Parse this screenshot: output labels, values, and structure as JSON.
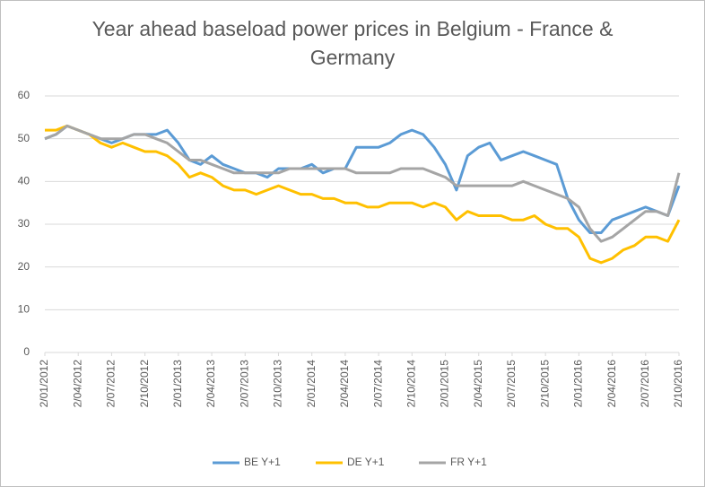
{
  "chart_data": {
    "type": "line",
    "title": "Year ahead baseload power prices in Belgium - France & Germany",
    "x": [
      "2/01/2012",
      "2/02/2012",
      "2/03/2012",
      "2/04/2012",
      "2/05/2012",
      "2/06/2012",
      "2/07/2012",
      "2/08/2012",
      "2/09/2012",
      "2/10/2012",
      "2/11/2012",
      "2/12/2012",
      "2/01/2013",
      "2/02/2013",
      "2/03/2013",
      "2/04/2013",
      "2/05/2013",
      "2/06/2013",
      "2/07/2013",
      "2/08/2013",
      "2/09/2013",
      "2/10/2013",
      "2/11/2013",
      "2/12/2013",
      "2/01/2014",
      "2/02/2014",
      "2/03/2014",
      "2/04/2014",
      "2/05/2014",
      "2/06/2014",
      "2/07/2014",
      "2/08/2014",
      "2/09/2014",
      "2/10/2014",
      "2/11/2014",
      "2/12/2014",
      "2/01/2015",
      "2/02/2015",
      "2/03/2015",
      "2/04/2015",
      "2/05/2015",
      "2/06/2015",
      "2/07/2015",
      "2/08/2015",
      "2/09/2015",
      "2/10/2015",
      "2/11/2015",
      "2/12/2015",
      "2/01/2016",
      "2/02/2016",
      "2/03/2016",
      "2/04/2016",
      "2/05/2016",
      "2/06/2016",
      "2/07/2016",
      "2/08/2016",
      "2/09/2016",
      "2/10/2016"
    ],
    "xticks": [
      "2/01/2012",
      "2/04/2012",
      "2/07/2012",
      "2/10/2012",
      "2/01/2013",
      "2/04/2013",
      "2/07/2013",
      "2/10/2013",
      "2/01/2014",
      "2/04/2014",
      "2/07/2014",
      "2/10/2014",
      "2/01/2015",
      "2/04/2015",
      "2/07/2015",
      "2/10/2015",
      "2/01/2016",
      "2/04/2016",
      "2/07/2016",
      "2/10/2016"
    ],
    "series": [
      {
        "name": "BE Y+1",
        "color": "#5b9bd5",
        "values": [
          50,
          51,
          53,
          52,
          51,
          50,
          49,
          50,
          51,
          51,
          51,
          52,
          49,
          45,
          44,
          46,
          44,
          43,
          42,
          42,
          41,
          43,
          43,
          43,
          44,
          42,
          43,
          43,
          48,
          48,
          48,
          49,
          51,
          52,
          51,
          48,
          44,
          38,
          46,
          48,
          49,
          45,
          46,
          47,
          46,
          45,
          44,
          36,
          31,
          28,
          28,
          31,
          32,
          33,
          34,
          33,
          32,
          39
        ]
      },
      {
        "name": "DE Y+1",
        "color": "#ffc000",
        "values": [
          52,
          52,
          53,
          52,
          51,
          49,
          48,
          49,
          48,
          47,
          47,
          46,
          44,
          41,
          42,
          41,
          39,
          38,
          38,
          37,
          38,
          39,
          38,
          37,
          37,
          36,
          36,
          35,
          35,
          34,
          34,
          35,
          35,
          35,
          34,
          35,
          34,
          31,
          33,
          32,
          32,
          32,
          31,
          31,
          32,
          30,
          29,
          29,
          27,
          22,
          21,
          22,
          24,
          25,
          27,
          27,
          26,
          31
        ]
      },
      {
        "name": "FR Y+1",
        "color": "#a5a5a5",
        "values": [
          50,
          51,
          53,
          52,
          51,
          50,
          50,
          50,
          51,
          51,
          50,
          49,
          47,
          45,
          45,
          44,
          43,
          42,
          42,
          42,
          42,
          42,
          43,
          43,
          43,
          43,
          43,
          43,
          42,
          42,
          42,
          42,
          43,
          43,
          43,
          42,
          41,
          39,
          39,
          39,
          39,
          39,
          39,
          40,
          39,
          38,
          37,
          36,
          34,
          29,
          26,
          27,
          29,
          31,
          33,
          33,
          32,
          42
        ]
      }
    ],
    "ylim": [
      0,
      60
    ],
    "yticks": [
      0,
      10,
      20,
      30,
      40,
      50,
      60
    ],
    "grid": true,
    "legend": "bottom"
  }
}
